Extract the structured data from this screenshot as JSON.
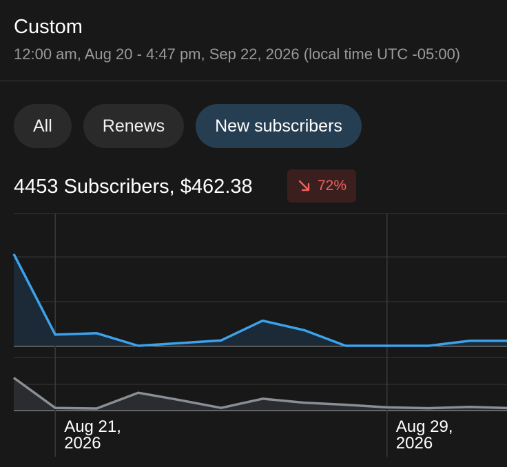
{
  "header": {
    "title": "Custom",
    "range": "12:00 am, Aug 20 - 4:47 pm, Sep 22, 2026 (local time UTC -05:00)"
  },
  "filters": [
    {
      "label": "All",
      "active": false
    },
    {
      "label": "Renews",
      "active": false
    },
    {
      "label": "New subscribers",
      "active": true
    }
  ],
  "summary": {
    "text": "4453 Subscribers, $462.38",
    "change": "72%",
    "change_direction": "down",
    "change_color": "#f2615d"
  },
  "chart_data": {
    "type": "line",
    "x_ticks": [
      {
        "label_line1": "Aug 21,",
        "label_line2": "2026"
      },
      {
        "label_line1": "Aug 29,",
        "label_line2": "2026"
      }
    ],
    "series": [
      {
        "color": "#3ba3ec",
        "values": [
          2.05,
          0.25,
          0.28,
          0.0,
          0.06,
          0.12,
          0.56,
          0.35,
          0.0,
          0.0,
          0.0,
          0.11,
          0.11
        ]
      },
      {
        "color": "#8a8f96",
        "values": [
          1.25,
          0.1,
          0.08,
          0.68,
          0.4,
          0.1,
          0.45,
          0.3,
          0.22,
          0.12,
          0.09,
          0.14,
          0.09
        ]
      }
    ]
  }
}
